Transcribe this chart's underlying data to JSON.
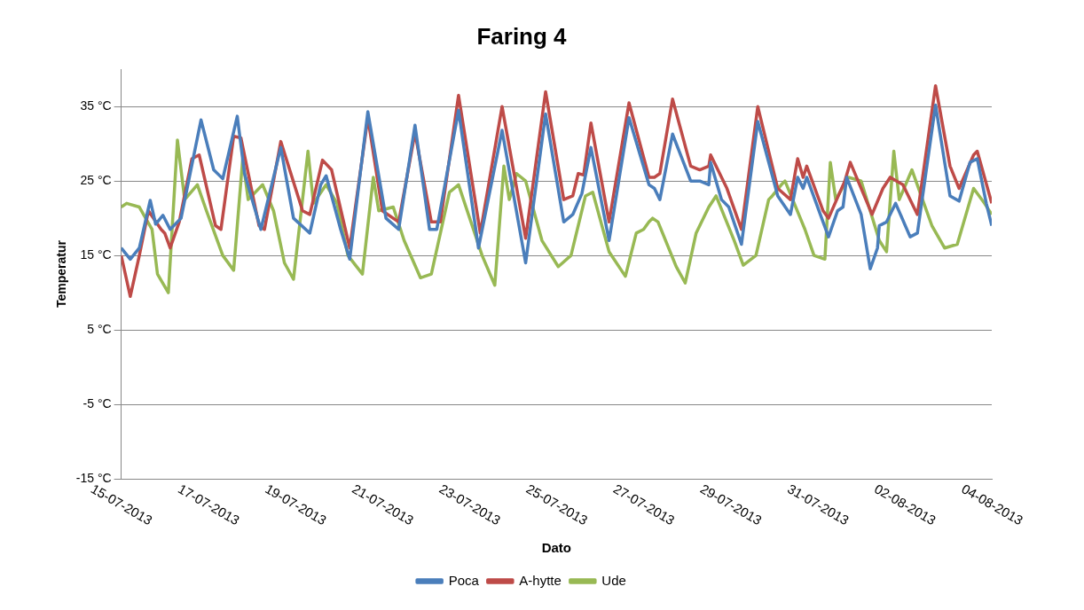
{
  "chart_data": {
    "type": "line",
    "title": "Faring 4",
    "xlabel": "Dato",
    "ylabel": "Temperatur",
    "xlim": [
      "2013-07-15",
      "2013-08-04"
    ],
    "xticks": [
      {
        "value": "2013-07-15",
        "label": "15-07-2013"
      },
      {
        "value": "2013-07-17",
        "label": "17-07-2013"
      },
      {
        "value": "2013-07-19",
        "label": "19-07-2013"
      },
      {
        "value": "2013-07-21",
        "label": "21-07-2013"
      },
      {
        "value": "2013-07-23",
        "label": "23-07-2013"
      },
      {
        "value": "2013-07-25",
        "label": "25-07-2013"
      },
      {
        "value": "2013-07-27",
        "label": "27-07-2013"
      },
      {
        "value": "2013-07-29",
        "label": "29-07-2013"
      },
      {
        "value": "2013-07-31",
        "label": "31-07-2013"
      },
      {
        "value": "2013-08-02",
        "label": "02-08-2013"
      },
      {
        "value": "2013-08-04",
        "label": "04-08-2013"
      }
    ],
    "ylim": [
      -15,
      40
    ],
    "yticks": [
      {
        "value": -15,
        "label": "-15 °C"
      },
      {
        "value": -5,
        "label": "-5 °C"
      },
      {
        "value": 5,
        "label": "5 °C"
      },
      {
        "value": 15,
        "label": "15 °C"
      },
      {
        "value": 25,
        "label": "25 °C"
      },
      {
        "value": 35,
        "label": "35 °C"
      }
    ],
    "grid": "y",
    "legend": "bottom",
    "marker": "none",
    "line_style": "solid",
    "series": [
      {
        "name": "Poca",
        "color": "#4a7ebb",
        "x": [
          "2013-07-15T00:00",
          "2013-07-15T05:00",
          "2013-07-15T10:00",
          "2013-07-15T16:00",
          "2013-07-15T19:00",
          "2013-07-15T23:00",
          "2013-07-16T03:00",
          "2013-07-16T09:00",
          "2013-07-16T20:00",
          "2013-07-17T03:00",
          "2013-07-17T08:00",
          "2013-07-17T16:00",
          "2013-07-17T20:00",
          "2013-07-18T05:00",
          "2013-07-18T16:00",
          "2013-07-18T23:00",
          "2013-07-19T08:00",
          "2013-07-19T14:00",
          "2013-07-19T17:00",
          "2013-07-20T01:00",
          "2013-07-20T06:00",
          "2013-07-20T16:00",
          "2013-07-21T02:00",
          "2013-07-21T09:00",
          "2013-07-21T18:00",
          "2013-07-22T02:00",
          "2013-07-22T06:00",
          "2013-07-22T18:00",
          "2013-07-23T05:00",
          "2013-07-23T18:00",
          "2013-07-24T07:00",
          "2013-07-24T18:00",
          "2013-07-25T04:00",
          "2013-07-25T09:00",
          "2013-07-25T14:00",
          "2013-07-25T19:00",
          "2013-07-26T05:00",
          "2013-07-26T16:00",
          "2013-07-27T03:00",
          "2013-07-27T06:00",
          "2013-07-27T09:00",
          "2013-07-27T16:00",
          "2013-07-28T02:00",
          "2013-07-28T07:00",
          "2013-07-28T12:00",
          "2013-07-28T13:00",
          "2013-07-28T19:00",
          "2013-07-28T23:00",
          "2013-07-29T06:00",
          "2013-07-29T15:00",
          "2013-07-30T02:00",
          "2013-07-30T09:00",
          "2013-07-30T13:00",
          "2013-07-30T16:00",
          "2013-07-30T18:00",
          "2013-07-31T03:00",
          "2013-07-31T06:00",
          "2013-07-31T11:00",
          "2013-07-31T14:00",
          "2013-07-31T16:00",
          "2013-08-01T00:00",
          "2013-08-01T05:00",
          "2013-08-01T09:00",
          "2013-08-01T10:00",
          "2013-08-01T14:00",
          "2013-08-01T19:00",
          "2013-08-02T03:00",
          "2013-08-02T07:00",
          "2013-08-02T17:00",
          "2013-08-03T01:00",
          "2013-08-03T06:00",
          "2013-08-03T12:00",
          "2013-08-03T16:00",
          "2013-08-03T21:00",
          "2013-08-04T00:00"
        ],
        "values": [
          16,
          14.5,
          16,
          22.4,
          19.2,
          20.4,
          18.5,
          20,
          33.2,
          26.5,
          25.3,
          33.7,
          26,
          18.5,
          29.5,
          20,
          18,
          24.5,
          25.7,
          18.5,
          14.5,
          34.3,
          20,
          18.5,
          32.5,
          18.5,
          18.5,
          34.5,
          16,
          31.8,
          14,
          34,
          19.5,
          20.5,
          23.3,
          29.5,
          17,
          33.5,
          24.5,
          24,
          22.5,
          31.3,
          25,
          25,
          24.5,
          27.5,
          22.5,
          21.5,
          16.5,
          33,
          23,
          20.5,
          25.5,
          24,
          25.5,
          19.5,
          17.5,
          21,
          21.5,
          25.5,
          20.5,
          13.2,
          16,
          19,
          19.5,
          22,
          17.5,
          18,
          35.2,
          23,
          22.3,
          27.5,
          28,
          22,
          19
        ]
      },
      {
        "name": "A-hytte",
        "color": "#be4b48",
        "x": [
          "2013-07-15T00:00",
          "2013-07-15T05:00",
          "2013-07-15T10:00",
          "2013-07-15T15:00",
          "2013-07-15T22:00",
          "2013-07-16T00:00",
          "2013-07-16T03:00",
          "2013-07-16T08:00",
          "2013-07-16T15:00",
          "2013-07-16T19:00",
          "2013-07-17T04:00",
          "2013-07-17T07:00",
          "2013-07-17T14:00",
          "2013-07-17T18:00",
          "2013-07-18T04:00",
          "2013-07-18T07:00",
          "2013-07-18T16:00",
          "2013-07-19T04:00",
          "2013-07-19T08:00",
          "2013-07-19T15:00",
          "2013-07-19T20:00",
          "2013-07-20T06:00",
          "2013-07-20T16:00",
          "2013-07-21T00:00",
          "2013-07-21T09:00",
          "2013-07-21T18:00",
          "2013-07-22T03:00",
          "2013-07-22T08:00",
          "2013-07-22T18:00",
          "2013-07-23T06:00",
          "2013-07-23T18:00",
          "2013-07-24T07:00",
          "2013-07-24T18:00",
          "2013-07-25T04:00",
          "2013-07-25T09:00",
          "2013-07-25T12:00",
          "2013-07-25T15:00",
          "2013-07-25T19:00",
          "2013-07-26T05:00",
          "2013-07-26T16:00",
          "2013-07-27T03:00",
          "2013-07-27T06:00",
          "2013-07-27T09:00",
          "2013-07-27T16:00",
          "2013-07-28T02:00",
          "2013-07-28T07:00",
          "2013-07-28T12:00",
          "2013-07-28T13:00",
          "2013-07-28T22:00",
          "2013-07-29T06:00",
          "2013-07-29T15:00",
          "2013-07-30T02:00",
          "2013-07-30T09:00",
          "2013-07-30T13:00",
          "2013-07-30T16:00",
          "2013-07-30T18:00",
          "2013-07-31T03:00",
          "2013-07-31T06:00",
          "2013-07-31T15:00",
          "2013-07-31T18:00",
          "2013-08-01T06:00",
          "2013-08-01T12:00",
          "2013-08-01T16:00",
          "2013-08-01T23:00",
          "2013-08-02T07:00",
          "2013-08-02T17:00",
          "2013-08-03T01:00",
          "2013-08-03T06:00",
          "2013-08-03T14:00",
          "2013-08-03T16:00",
          "2013-08-04T00:00"
        ],
        "values": [
          15,
          9.5,
          15,
          21,
          18.5,
          18,
          16,
          19.5,
          28,
          28.5,
          19,
          18.5,
          31,
          30.8,
          19,
          18.5,
          30.3,
          21,
          20.5,
          27.8,
          26.5,
          16,
          33.5,
          21,
          19.5,
          31.5,
          19.5,
          19.5,
          36.5,
          18,
          35,
          17.3,
          37,
          22.5,
          23,
          26,
          25.8,
          32.8,
          19.5,
          35.5,
          25.5,
          25.5,
          26,
          36,
          27,
          26.5,
          27,
          28.5,
          24,
          18.5,
          35,
          24,
          22.5,
          28,
          25.5,
          27,
          21,
          20,
          25,
          27.5,
          20.5,
          24,
          25.5,
          24.5,
          20.5,
          37.8,
          27,
          24,
          28.5,
          29,
          22
        ]
      },
      {
        "name": "Ude",
        "color": "#98b954",
        "x": [
          "2013-07-15T00:00",
          "2013-07-15T03:00",
          "2013-07-15T10:00",
          "2013-07-15T17:00",
          "2013-07-15T20:00",
          "2013-07-16T02:00",
          "2013-07-16T07:00",
          "2013-07-16T11:00",
          "2013-07-16T18:00",
          "2013-07-16T23:00",
          "2013-07-17T08:00",
          "2013-07-17T14:00",
          "2013-07-17T19:00",
          "2013-07-17T22:00",
          "2013-07-18T06:00",
          "2013-07-18T12:00",
          "2013-07-18T18:00",
          "2013-07-18T23:00",
          "2013-07-19T07:00",
          "2013-07-19T10:00",
          "2013-07-19T17:00",
          "2013-07-19T23:00",
          "2013-07-20T05:00",
          "2013-07-20T13:00",
          "2013-07-20T19:00",
          "2013-07-20T22:00",
          "2013-07-21T06:00",
          "2013-07-21T12:00",
          "2013-07-21T21:00",
          "2013-07-22T03:00",
          "2013-07-22T13:00",
          "2013-07-22T18:00",
          "2013-07-23T07:00",
          "2013-07-23T14:00",
          "2013-07-23T19:00",
          "2013-07-23T22:00",
          "2013-07-24T02:00",
          "2013-07-24T07:00",
          "2013-07-24T16:00",
          "2013-07-25T01:00",
          "2013-07-25T08:00",
          "2013-07-25T16:00",
          "2013-07-25T20:00",
          "2013-07-26T05:00",
          "2013-07-26T14:00",
          "2013-07-26T20:00",
          "2013-07-27T00:00",
          "2013-07-27T03:00",
          "2013-07-27T05:00",
          "2013-07-27T08:00",
          "2013-07-27T18:00",
          "2013-07-27T23:00",
          "2013-07-28T05:00",
          "2013-07-28T12:00",
          "2013-07-28T16:00",
          "2013-07-29T02:00",
          "2013-07-29T07:00",
          "2013-07-29T14:00",
          "2013-07-29T21:00",
          "2013-07-29T23:00",
          "2013-07-30T04:00",
          "2013-07-30T06:00",
          "2013-07-30T17:00",
          "2013-07-30T22:00",
          "2013-07-31T04:00",
          "2013-07-31T07:00",
          "2013-07-31T10:00",
          "2013-07-31T17:00",
          "2013-08-01T00:00",
          "2013-08-01T10:00",
          "2013-08-01T14:00",
          "2013-08-01T18:00",
          "2013-08-01T21:00",
          "2013-08-02T04:00",
          "2013-08-02T15:00",
          "2013-08-02T22:00",
          "2013-08-03T05:00",
          "2013-08-03T14:00",
          "2013-08-03T20:00",
          "2013-08-04T00:00"
        ],
        "values": [
          21.5,
          22,
          21.5,
          18.5,
          12.5,
          10,
          30.5,
          22.5,
          24.5,
          21,
          15,
          13,
          28,
          22.5,
          24.5,
          21,
          14,
          11.8,
          29,
          22,
          24.5,
          22,
          15,
          12.5,
          25.5,
          21,
          21.5,
          17,
          12,
          12.5,
          23.5,
          24.5,
          15,
          11,
          27,
          22.5,
          26,
          25,
          17,
          13.5,
          15,
          23,
          23.5,
          15.5,
          12.2,
          18,
          18.5,
          19.5,
          20,
          19.5,
          13.5,
          11.3,
          18,
          21.5,
          23,
          17,
          13.7,
          15,
          22.5,
          23,
          24.5,
          25,
          18.5,
          15,
          14.5,
          27.5,
          22.5,
          25.5,
          25,
          17,
          15.5,
          29,
          22.5,
          26.5,
          19,
          16,
          16.5,
          24,
          22,
          20.5
        ]
      }
    ]
  }
}
